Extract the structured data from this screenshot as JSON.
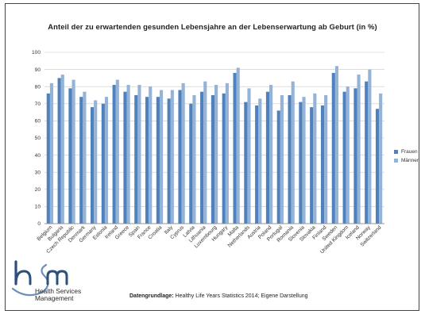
{
  "chart_data": {
    "type": "bar",
    "title": "Anteil der zu erwartenden gesunden Lebensjahre an der Lebenserwartung ab Geburt (in %)",
    "xlabel": "",
    "ylabel": "",
    "ylim": [
      0,
      100
    ],
    "yticks": [
      0,
      10,
      20,
      30,
      40,
      50,
      60,
      70,
      80,
      90,
      100
    ],
    "grid": true,
    "legend_position": "right",
    "categories": [
      "Belgium",
      "Bulgaria",
      "Czech Republic",
      "Denmark",
      "Germany",
      "Estonia",
      "Ireland",
      "Greece",
      "Spain",
      "France",
      "Croatia",
      "Italy",
      "Cyprus",
      "Latvia",
      "Lithuania",
      "Luxembourg",
      "Hungary",
      "Malta",
      "Netherlands",
      "Austria",
      "Poland",
      "Portugal",
      "Romania",
      "Slovenia",
      "Slovakia",
      "Finland",
      "Sweden",
      "United Kingdom",
      "Iceland",
      "Norway",
      "Switzerland"
    ],
    "series": [
      {
        "name": "Frauen",
        "color": "#4f81bd",
        "values": [
          76,
          85,
          79,
          74,
          68,
          70,
          81,
          77,
          75,
          74,
          74,
          73,
          78,
          70,
          77,
          75,
          76,
          88,
          71,
          69,
          77,
          66,
          75,
          71,
          68,
          69,
          88,
          77,
          79,
          83,
          67
        ]
      },
      {
        "name": "Männer",
        "color": "#95b3d7",
        "values": [
          82,
          87,
          84,
          77,
          72,
          74,
          84,
          81,
          81,
          80,
          78,
          78,
          82,
          75,
          83,
          81,
          82,
          91,
          79,
          73,
          81,
          75,
          83,
          74,
          76,
          75,
          92,
          80,
          87,
          90,
          76
        ]
      }
    ]
  },
  "source": {
    "label": "Datengrundlage:",
    "text": " Healthy Life Years Statistics 2014; Eigene Darstellung"
  },
  "logo": {
    "line1": "Health Services",
    "line2": "Management"
  }
}
